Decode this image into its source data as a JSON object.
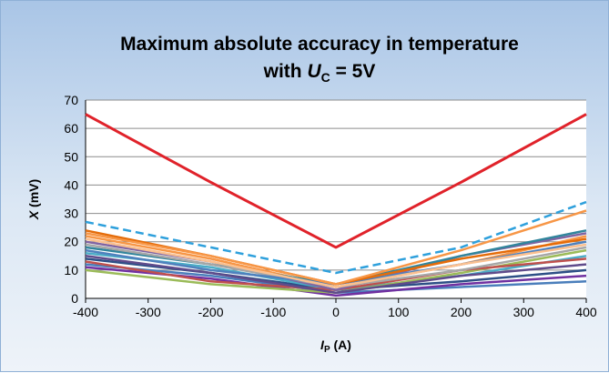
{
  "chart_data": {
    "type": "line",
    "title_line1": "Maximum absolute accuracy in temperature",
    "title_line2_prefix": "with ",
    "title_line2_var": "U",
    "title_line2_sub": "C",
    "title_line2_suffix": " = 5V",
    "xlabel_var": "I",
    "xlabel_sub": "P",
    "xlabel_unit": " (A)",
    "ylabel_var": "X",
    "ylabel_unit": " (mV)",
    "x": [
      -400,
      -200,
      0,
      200,
      400
    ],
    "xlim": [
      -400,
      400
    ],
    "ylim": [
      0,
      70
    ],
    "xticks": [
      "-400",
      "-300",
      "-200",
      "-100",
      "0",
      "100",
      "200",
      "300",
      "400"
    ],
    "yticks": [
      "0",
      "10",
      "20",
      "30",
      "40",
      "50",
      "60",
      "70"
    ],
    "grid": true,
    "legend": "none",
    "series": [
      {
        "color": "#4a7ebb",
        "dash": false,
        "values": [
          12,
          8,
          2,
          4,
          6
        ]
      },
      {
        "color": "#2d4f86",
        "dash": false,
        "values": [
          14,
          9,
          3,
          6,
          10
        ]
      },
      {
        "color": "#7030a0",
        "dash": false,
        "values": [
          11,
          7,
          1,
          5,
          8
        ]
      },
      {
        "color": "#4bacc6",
        "dash": false,
        "values": [
          16,
          11,
          3,
          8,
          15
        ]
      },
      {
        "color": "#9bbb59",
        "dash": false,
        "values": [
          10,
          5,
          2,
          9,
          17
        ]
      },
      {
        "color": "#f79646",
        "dash": false,
        "values": [
          22,
          14,
          4,
          12,
          22
        ]
      },
      {
        "color": "#c0504d",
        "dash": false,
        "values": [
          13,
          6,
          3,
          10,
          14
        ]
      },
      {
        "color": "#8064a2",
        "dash": false,
        "values": [
          20,
          13,
          3,
          15,
          23
        ]
      },
      {
        "color": "#31859c",
        "dash": false,
        "values": [
          18,
          12,
          5,
          15,
          24
        ]
      },
      {
        "color": "#a6a6a6",
        "dash": false,
        "values": [
          19,
          12,
          4,
          10,
          18
        ]
      },
      {
        "color": "#4f81bd",
        "dash": false,
        "values": [
          17,
          10,
          5,
          12,
          20
        ]
      },
      {
        "color": "#e46c0a",
        "dash": false,
        "values": [
          24,
          15,
          5,
          14,
          21
        ]
      },
      {
        "color": "#fac090",
        "dash": false,
        "values": [
          21,
          13,
          4,
          12,
          19
        ]
      },
      {
        "color": "#5f4b8b",
        "dash": false,
        "values": [
          15,
          9,
          2,
          8,
          12
        ]
      },
      {
        "color": "#f79646",
        "dash": false,
        "values": [
          23,
          15,
          5,
          17,
          31
        ]
      },
      {
        "color": "#2ea0dc",
        "dash": true,
        "values": [
          27,
          18,
          9,
          18,
          34
        ]
      },
      {
        "color": "#e0222a",
        "dash": false,
        "values": [
          65,
          41,
          18,
          41,
          65
        ]
      }
    ]
  }
}
